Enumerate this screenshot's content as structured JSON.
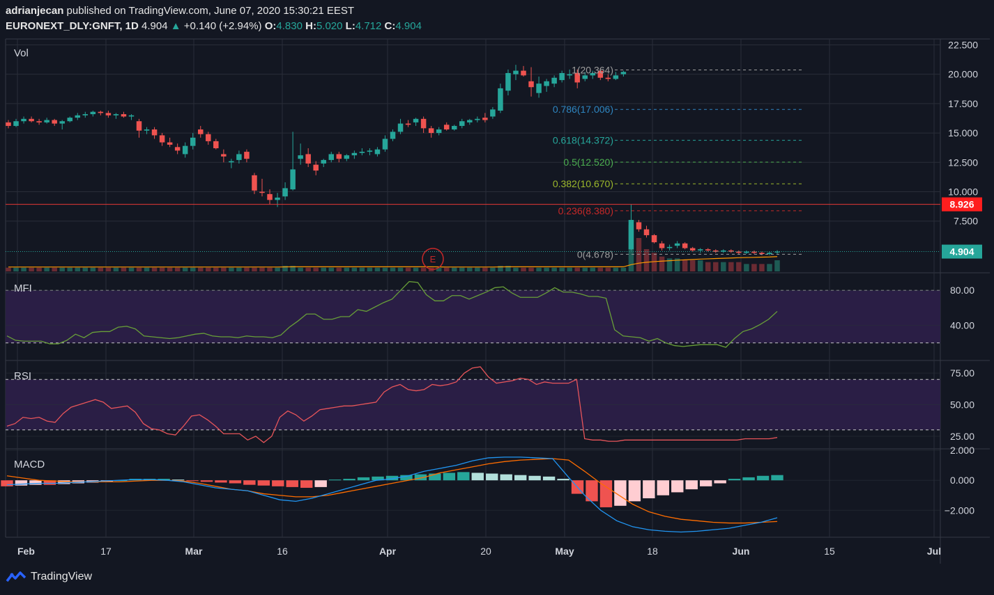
{
  "header": {
    "line1_user": "adrianjecan",
    "line1_rest": " published on TradingView.com, June 07, 2020 15:30:21 EEST",
    "symbol": "EURONEXT_DLY:GNFT, 1D",
    "price": "4.904",
    "change": "+0.140 (+2.94%)",
    "o_label": "O:",
    "o_val": "4.830",
    "h_label": "H:",
    "h_val": "5.020",
    "l_label": "L:",
    "l_val": "4.712",
    "c_label": "C:",
    "c_val": "4.904",
    "arrow": "▲"
  },
  "footer": {
    "brand": "TradingView"
  },
  "colors": {
    "up": "#26a69a",
    "down": "#ef5350",
    "bg": "#131722",
    "grid": "#2a2e39",
    "mfi": "#689f38",
    "rsi": "#e8555a",
    "macd": "#2196f3",
    "signal": "#ff6d00",
    "band": "#2a1e45"
  },
  "chart_data": {
    "type": "candlestick",
    "panes": {
      "price": {
        "label": "Vol",
        "y_ticks": [
          "22.500",
          "20.000",
          "17.500",
          "15.000",
          "12.500",
          "10.000",
          "7.500"
        ],
        "y_tick_values": [
          22.5,
          20,
          17.5,
          15,
          12.5,
          10,
          7.5
        ],
        "ylim": [
          3.1,
          23.0
        ],
        "horizontal_line": {
          "value": 8.926,
          "label": "8.926"
        },
        "last_price": {
          "value": 4.904,
          "label": "4.904"
        },
        "fib_levels": [
          {
            "label": "1(20.364)",
            "value": 20.364,
            "color": "#9e9e9e"
          },
          {
            "label": "0.786(17.006)",
            "value": 17.006,
            "color": "#2e86c1"
          },
          {
            "label": "0.618(14.372)",
            "value": 14.372,
            "color": "#26a69a"
          },
          {
            "label": "0.5(12.520)",
            "value": 12.52,
            "color": "#4caf50"
          },
          {
            "label": "0.382(10.670)",
            "value": 10.67,
            "color": "#9cb82b"
          },
          {
            "label": "0.236(8.380)",
            "value": 8.38,
            "color": "#c62828"
          },
          {
            "label": "0(4.678)",
            "value": 4.678,
            "color": "#9e9e9e"
          }
        ],
        "earnings_marker": "E",
        "candles": [
          [
            15.9,
            16.1,
            15.4,
            15.6
          ],
          [
            15.6,
            16.2,
            15.5,
            16.0
          ],
          [
            16.0,
            16.4,
            15.8,
            16.2
          ],
          [
            16.2,
            16.4,
            15.9,
            16.0
          ],
          [
            16.0,
            16.2,
            15.7,
            15.9
          ],
          [
            15.9,
            16.3,
            15.8,
            16.1
          ],
          [
            16.1,
            16.2,
            15.6,
            15.8
          ],
          [
            15.8,
            16.1,
            15.3,
            16.0
          ],
          [
            16.0,
            16.4,
            15.9,
            16.3
          ],
          [
            16.3,
            16.7,
            16.1,
            16.5
          ],
          [
            16.5,
            16.8,
            16.3,
            16.6
          ],
          [
            16.6,
            16.9,
            16.4,
            16.8
          ],
          [
            16.8,
            16.9,
            16.5,
            16.7
          ],
          [
            16.7,
            16.9,
            16.3,
            16.5
          ],
          [
            16.5,
            16.7,
            16.2,
            16.6
          ],
          [
            16.6,
            16.8,
            16.3,
            16.4
          ],
          [
            16.4,
            16.6,
            16.1,
            16.5
          ],
          [
            16.0,
            16.2,
            14.6,
            15.2
          ],
          [
            15.2,
            15.5,
            14.9,
            15.3
          ],
          [
            15.3,
            15.5,
            14.5,
            14.8
          ],
          [
            14.8,
            15.0,
            13.9,
            14.2
          ],
          [
            14.2,
            14.6,
            13.8,
            14.0
          ],
          [
            13.8,
            14.1,
            13.2,
            13.5
          ],
          [
            13.2,
            14.2,
            12.9,
            13.9
          ],
          [
            13.9,
            15.0,
            13.6,
            14.6
          ],
          [
            15.3,
            15.6,
            14.6,
            14.9
          ],
          [
            14.9,
            15.1,
            14.0,
            14.3
          ],
          [
            14.3,
            14.5,
            13.6,
            13.7
          ],
          [
            13.2,
            13.6,
            12.5,
            13.0
          ],
          [
            12.5,
            12.8,
            12.0,
            12.6
          ],
          [
            12.7,
            13.5,
            12.4,
            13.2
          ],
          [
            13.4,
            13.6,
            12.5,
            12.8
          ],
          [
            11.4,
            11.6,
            9.8,
            10.1
          ],
          [
            10.0,
            11.1,
            9.6,
            9.9
          ],
          [
            9.8,
            10.2,
            8.9,
            9.3
          ],
          [
            9.3,
            9.9,
            8.7,
            9.5
          ],
          [
            9.6,
            10.8,
            9.3,
            10.3
          ],
          [
            10.2,
            15.1,
            10.1,
            11.9
          ],
          [
            12.8,
            14.1,
            12.3,
            13.1
          ],
          [
            13.2,
            13.7,
            12.1,
            12.4
          ],
          [
            12.3,
            12.6,
            11.4,
            11.8
          ],
          [
            12.4,
            12.8,
            12.1,
            12.7
          ],
          [
            12.7,
            13.4,
            12.5,
            13.2
          ],
          [
            13.2,
            13.4,
            12.5,
            12.8
          ],
          [
            12.8,
            13.2,
            12.6,
            13.1
          ],
          [
            13.1,
            13.5,
            12.8,
            13.3
          ],
          [
            13.3,
            13.7,
            13.1,
            13.4
          ],
          [
            13.4,
            13.7,
            13.1,
            13.5
          ],
          [
            13.2,
            13.8,
            13.0,
            13.6
          ],
          [
            13.6,
            14.8,
            13.4,
            14.5
          ],
          [
            14.5,
            15.3,
            14.3,
            15.1
          ],
          [
            15.1,
            16.2,
            14.9,
            15.8
          ],
          [
            15.8,
            16.1,
            15.5,
            15.7
          ],
          [
            15.9,
            16.3,
            15.6,
            16.2
          ],
          [
            16.2,
            16.4,
            15.0,
            15.4
          ],
          [
            15.4,
            15.6,
            14.6,
            15.0
          ],
          [
            15.0,
            15.5,
            14.8,
            15.3
          ],
          [
            15.7,
            15.9,
            15.2,
            15.3
          ],
          [
            15.3,
            15.7,
            15.2,
            15.6
          ],
          [
            15.6,
            16.2,
            15.4,
            16.0
          ],
          [
            15.9,
            16.2,
            15.7,
            16.1
          ],
          [
            16.1,
            16.4,
            15.9,
            16.2
          ],
          [
            16.3,
            16.7,
            15.9,
            16.1
          ],
          [
            16.4,
            17.2,
            16.2,
            17.0
          ],
          [
            16.9,
            19.2,
            16.7,
            18.8
          ],
          [
            18.6,
            20.4,
            18.2,
            20.1
          ],
          [
            20.0,
            20.8,
            19.5,
            20.3
          ],
          [
            20.3,
            20.7,
            19.8,
            19.9
          ],
          [
            19.4,
            20.6,
            18.1,
            18.9
          ],
          [
            18.4,
            19.8,
            18.0,
            19.2
          ],
          [
            19.0,
            19.6,
            18.5,
            19.4
          ],
          [
            19.2,
            19.9,
            18.9,
            19.7
          ],
          [
            19.5,
            20.3,
            19.3,
            20.1
          ],
          [
            19.9,
            20.4,
            19.6,
            20.0
          ],
          [
            20.1,
            20.4,
            18.8,
            19.3
          ],
          [
            19.6,
            20.2,
            19.4,
            19.9
          ],
          [
            19.9,
            20.3,
            19.6,
            20.1
          ],
          [
            20.3,
            20.5,
            19.5,
            19.7
          ],
          [
            19.7,
            20.0,
            19.4,
            19.6
          ],
          [
            19.6,
            20.2,
            19.5,
            19.9
          ],
          [
            20.0,
            20.3,
            19.8,
            20.2
          ],
          [
            5.1,
            8.9,
            5.0,
            7.6
          ],
          [
            7.4,
            7.6,
            6.6,
            6.8
          ],
          [
            6.8,
            7.1,
            6.1,
            6.3
          ],
          [
            6.3,
            6.4,
            5.6,
            5.7
          ],
          [
            5.6,
            5.8,
            5.0,
            5.2
          ],
          [
            5.2,
            5.5,
            5.0,
            5.3
          ],
          [
            5.4,
            5.8,
            5.2,
            5.6
          ],
          [
            5.6,
            5.7,
            5.1,
            5.2
          ],
          [
            5.2,
            5.3,
            4.9,
            5.0
          ],
          [
            5.0,
            5.2,
            4.8,
            5.1
          ],
          [
            5.1,
            5.2,
            4.9,
            5.0
          ],
          [
            5.0,
            5.1,
            4.8,
            4.9
          ],
          [
            4.9,
            5.1,
            4.8,
            5.0
          ],
          [
            5.0,
            5.1,
            4.8,
            4.9
          ],
          [
            4.9,
            5.0,
            4.7,
            4.8
          ],
          [
            4.8,
            5.0,
            4.7,
            4.9
          ],
          [
            4.9,
            5.0,
            4.7,
            4.8
          ],
          [
            4.8,
            4.9,
            4.6,
            4.7
          ],
          [
            4.7,
            4.9,
            4.6,
            4.8
          ],
          [
            4.83,
            5.02,
            4.712,
            4.904
          ]
        ],
        "volume": [
          2,
          2,
          2,
          2,
          2,
          2,
          2,
          2,
          2,
          2,
          2,
          2,
          2,
          2,
          2,
          2,
          2,
          2,
          2,
          2,
          2,
          2,
          2,
          2,
          2,
          2,
          2,
          2,
          2,
          2,
          2,
          2,
          2,
          2,
          2,
          2,
          3,
          3,
          2,
          2,
          2,
          2,
          2,
          2,
          2,
          2,
          2,
          2,
          2,
          2,
          2,
          2,
          2,
          2,
          2,
          2,
          2,
          2,
          2,
          2,
          2,
          2,
          2,
          2,
          3,
          3,
          2,
          2,
          2,
          2,
          2,
          2,
          2,
          2,
          2,
          2,
          2,
          2,
          2,
          2,
          2,
          25,
          18,
          12,
          10,
          8,
          7,
          7,
          6,
          6,
          6,
          5,
          5,
          5,
          5,
          5,
          4,
          4,
          4,
          4,
          6
        ]
      },
      "mfi": {
        "label": "MFI",
        "y_ticks": [
          "80.00",
          "40.00"
        ],
        "y_tick_values": [
          80,
          40
        ],
        "ylim": [
          0,
          100
        ],
        "band": [
          20,
          80
        ],
        "values": [
          28,
          23,
          22,
          22,
          22,
          19,
          19,
          23,
          30,
          26,
          32,
          33,
          33,
          38,
          39,
          36,
          28,
          27,
          26,
          25,
          26,
          28,
          30,
          31,
          28,
          27,
          27,
          26,
          28,
          27,
          27,
          26,
          29,
          38,
          45,
          53,
          53,
          47,
          47,
          50,
          50,
          58,
          56,
          61,
          66,
          70,
          80,
          90,
          89,
          75,
          68,
          68,
          74,
          74,
          70,
          74,
          78,
          83,
          84,
          77,
          72,
          72,
          72,
          77,
          83,
          78,
          78,
          76,
          73,
          73,
          71,
          35,
          28,
          27,
          26,
          22,
          25,
          20,
          17,
          16,
          17,
          18,
          18,
          18,
          15,
          25,
          33,
          36,
          41,
          47,
          56
        ]
      },
      "rsi": {
        "label": "RSI",
        "y_ticks": [
          "75.00",
          "50.00",
          "25.00"
        ],
        "y_tick_values": [
          75,
          50,
          25
        ],
        "ylim": [
          15,
          85
        ],
        "band": [
          30,
          70
        ],
        "values": [
          33,
          35,
          40,
          39,
          40,
          37,
          36,
          43,
          48,
          50,
          52,
          54,
          52,
          47,
          48,
          49,
          44,
          35,
          31,
          30,
          27,
          26,
          33,
          41,
          42,
          38,
          33,
          27,
          27,
          27,
          22,
          25,
          20,
          25,
          40,
          45,
          42,
          37,
          41,
          46,
          47,
          48,
          49,
          49,
          50,
          51,
          52,
          60,
          64,
          66,
          62,
          61,
          62,
          66,
          65,
          66,
          68,
          75,
          79,
          80,
          72,
          67,
          68,
          69,
          71,
          70,
          66,
          68,
          67,
          67,
          67,
          70,
          23,
          22,
          22,
          21,
          21,
          22,
          22,
          22,
          22,
          22,
          22,
          22,
          22,
          22,
          22,
          22,
          22,
          22,
          22,
          22,
          23,
          23,
          23,
          23,
          24
        ]
      },
      "macd": {
        "label": "MACD",
        "y_ticks": [
          "2.000",
          "0.000",
          "−2.000"
        ],
        "y_tick_values": [
          2,
          0,
          -2
        ],
        "ylim": [
          -3.8,
          2.1
        ],
        "macd": [
          -0.3,
          -0.25,
          -0.2,
          -0.2,
          -0.15,
          -0.1,
          -0.05,
          0,
          0.05,
          0.05,
          0,
          -0.1,
          -0.3,
          -0.5,
          -0.6,
          -0.7,
          -1.0,
          -1.3,
          -1.4,
          -1.2,
          -0.9,
          -0.6,
          -0.3,
          0,
          0.1,
          0.3,
          0.6,
          0.8,
          1.0,
          1.3,
          1.5,
          1.55,
          1.55,
          1.5,
          1.45,
          0.2,
          -1.0,
          -2.0,
          -2.7,
          -3.1,
          -3.3,
          -3.4,
          -3.45,
          -3.4,
          -3.3,
          -3.2,
          -3.0,
          -2.8,
          -2.5
        ],
        "signal": [
          0.3,
          0.15,
          0,
          -0.05,
          -0.1,
          -0.1,
          -0.1,
          -0.1,
          -0.05,
          0,
          0,
          -0.05,
          -0.2,
          -0.4,
          -0.6,
          -0.7,
          -0.9,
          -1.0,
          -1.1,
          -1.1,
          -1.0,
          -0.8,
          -0.6,
          -0.4,
          -0.2,
          0,
          0.2,
          0.5,
          0.7,
          0.9,
          1.1,
          1.25,
          1.35,
          1.4,
          1.45,
          1.35,
          0.6,
          -0.2,
          -0.9,
          -1.6,
          -2.1,
          -2.4,
          -2.6,
          -2.7,
          -2.8,
          -2.85,
          -2.85,
          -2.8,
          -2.75
        ],
        "histogram": [
          -0.4,
          -0.35,
          -0.3,
          -0.3,
          -0.25,
          -0.2,
          -0.15,
          -0.1,
          0,
          0.1,
          0.1,
          0.1,
          0.05,
          -0.05,
          -0.1,
          -0.15,
          -0.2,
          -0.3,
          -0.35,
          -0.4,
          -0.45,
          -0.5,
          -0.45,
          0.05,
          0.1,
          0.2,
          0.25,
          0.3,
          0.35,
          0.4,
          0.45,
          0.5,
          0.55,
          0.5,
          0.45,
          0.4,
          0.35,
          0.3,
          0.25,
          0.1,
          -0.9,
          -1.4,
          -1.8,
          -1.7,
          -1.4,
          -1.2,
          -1.0,
          -0.8,
          -0.6,
          -0.4,
          -0.2,
          0.1,
          0.2,
          0.3,
          0.35
        ]
      }
    },
    "x_labels": [
      "Feb",
      "17",
      "Mar",
      "16",
      "Apr",
      "20",
      "May",
      "18",
      "Jun",
      "15",
      "Jul"
    ],
    "x_label_bold": [
      "Feb",
      "Mar",
      "Apr",
      "May",
      "Jun",
      "Jul"
    ]
  }
}
